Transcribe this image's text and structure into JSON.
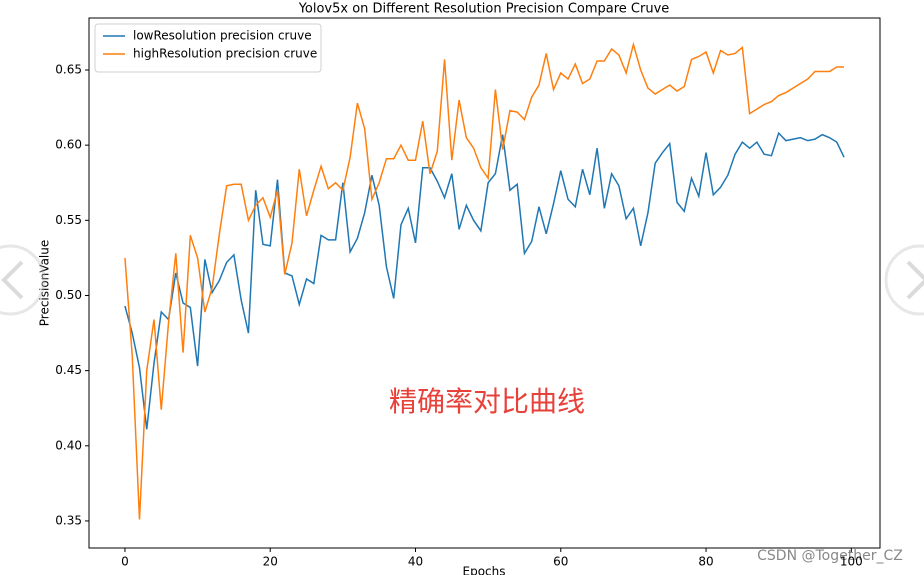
{
  "chart_data": {
    "type": "line",
    "title": "Yolov5x on Different Resolution Precision Compare Cruve",
    "xlabel": "Epochs",
    "ylabel": "PrecisionValue",
    "annotation": "精确率对比曲线",
    "watermark": "CSDN @Together_CZ",
    "x": [
      0,
      1,
      2,
      3,
      4,
      5,
      6,
      7,
      8,
      9,
      10,
      11,
      12,
      13,
      14,
      15,
      16,
      17,
      18,
      19,
      20,
      21,
      22,
      23,
      24,
      25,
      26,
      27,
      28,
      29,
      30,
      31,
      32,
      33,
      34,
      35,
      36,
      37,
      38,
      39,
      40,
      41,
      42,
      43,
      44,
      45,
      46,
      47,
      48,
      49,
      50,
      51,
      52,
      53,
      54,
      55,
      56,
      57,
      58,
      59,
      60,
      61,
      62,
      63,
      64,
      65,
      66,
      67,
      68,
      69,
      70,
      71,
      72,
      73,
      74,
      75,
      76,
      77,
      78,
      79,
      80,
      81,
      82,
      83,
      84,
      85,
      86,
      87,
      88,
      89,
      90,
      91,
      92,
      93,
      94,
      95,
      96,
      97,
      98,
      99
    ],
    "series": [
      {
        "name": "lowResolution precision cruve",
        "color": "#1f77b4",
        "values": [
          0.493,
          0.475,
          0.452,
          0.411,
          0.455,
          0.489,
          0.484,
          0.515,
          0.495,
          0.492,
          0.453,
          0.524,
          0.502,
          0.51,
          0.522,
          0.527,
          0.497,
          0.475,
          0.57,
          0.534,
          0.533,
          0.577,
          0.515,
          0.513,
          0.494,
          0.511,
          0.508,
          0.54,
          0.537,
          0.537,
          0.575,
          0.529,
          0.538,
          0.555,
          0.58,
          0.56,
          0.519,
          0.498,
          0.547,
          0.558,
          0.535,
          0.585,
          0.585,
          0.576,
          0.565,
          0.581,
          0.544,
          0.56,
          0.55,
          0.543,
          0.575,
          0.581,
          0.607,
          0.57,
          0.574,
          0.528,
          0.536,
          0.559,
          0.541,
          0.561,
          0.583,
          0.564,
          0.559,
          0.584,
          0.567,
          0.598,
          0.558,
          0.581,
          0.573,
          0.551,
          0.558,
          0.533,
          0.555,
          0.588,
          0.595,
          0.601,
          0.562,
          0.556,
          0.578,
          0.566,
          0.595,
          0.567,
          0.572,
          0.58,
          0.594,
          0.602,
          0.598,
          0.602,
          0.594,
          0.593,
          0.608,
          0.603,
          0.604,
          0.605,
          0.603,
          0.604,
          0.607,
          0.605,
          0.602,
          0.592
        ]
      },
      {
        "name": "highResolution precision cruve",
        "color": "#ff7f0e",
        "values": [
          0.525,
          0.46,
          0.351,
          0.45,
          0.484,
          0.424,
          0.482,
          0.528,
          0.462,
          0.54,
          0.525,
          0.489,
          0.505,
          0.541,
          0.573,
          0.574,
          0.574,
          0.55,
          0.56,
          0.565,
          0.552,
          0.57,
          0.514,
          0.535,
          0.584,
          0.553,
          0.57,
          0.586,
          0.571,
          0.575,
          0.57,
          0.592,
          0.628,
          0.611,
          0.564,
          0.575,
          0.591,
          0.591,
          0.6,
          0.59,
          0.59,
          0.616,
          0.581,
          0.596,
          0.657,
          0.59,
          0.63,
          0.605,
          0.598,
          0.585,
          0.578,
          0.637,
          0.597,
          0.623,
          0.622,
          0.617,
          0.632,
          0.64,
          0.661,
          0.637,
          0.648,
          0.644,
          0.654,
          0.641,
          0.644,
          0.656,
          0.656,
          0.664,
          0.66,
          0.648,
          0.667,
          0.65,
          0.638,
          0.634,
          0.637,
          0.64,
          0.636,
          0.639,
          0.657,
          0.659,
          0.662,
          0.648,
          0.663,
          0.66,
          0.661,
          0.665,
          0.621,
          0.624,
          0.627,
          0.629,
          0.633,
          0.635,
          0.638,
          0.641,
          0.644,
          0.649,
          0.649,
          0.649,
          0.652,
          0.652
        ]
      }
    ],
    "xlim": [
      -4.95,
      103.95
    ],
    "xticks": [
      0,
      20,
      40,
      60,
      80,
      100
    ],
    "ylim": [
      0.332,
      0.6846
    ],
    "yticks": [
      0.35,
      {
        "value": 0.4,
        "label": "0.40"
      },
      0.45,
      {
        "value": 0.5,
        "label": "0.50"
      },
      0.55,
      {
        "value": 0.6,
        "label": "0.60"
      },
      0.65
    ],
    "legend": "upper left",
    "grid": false
  }
}
